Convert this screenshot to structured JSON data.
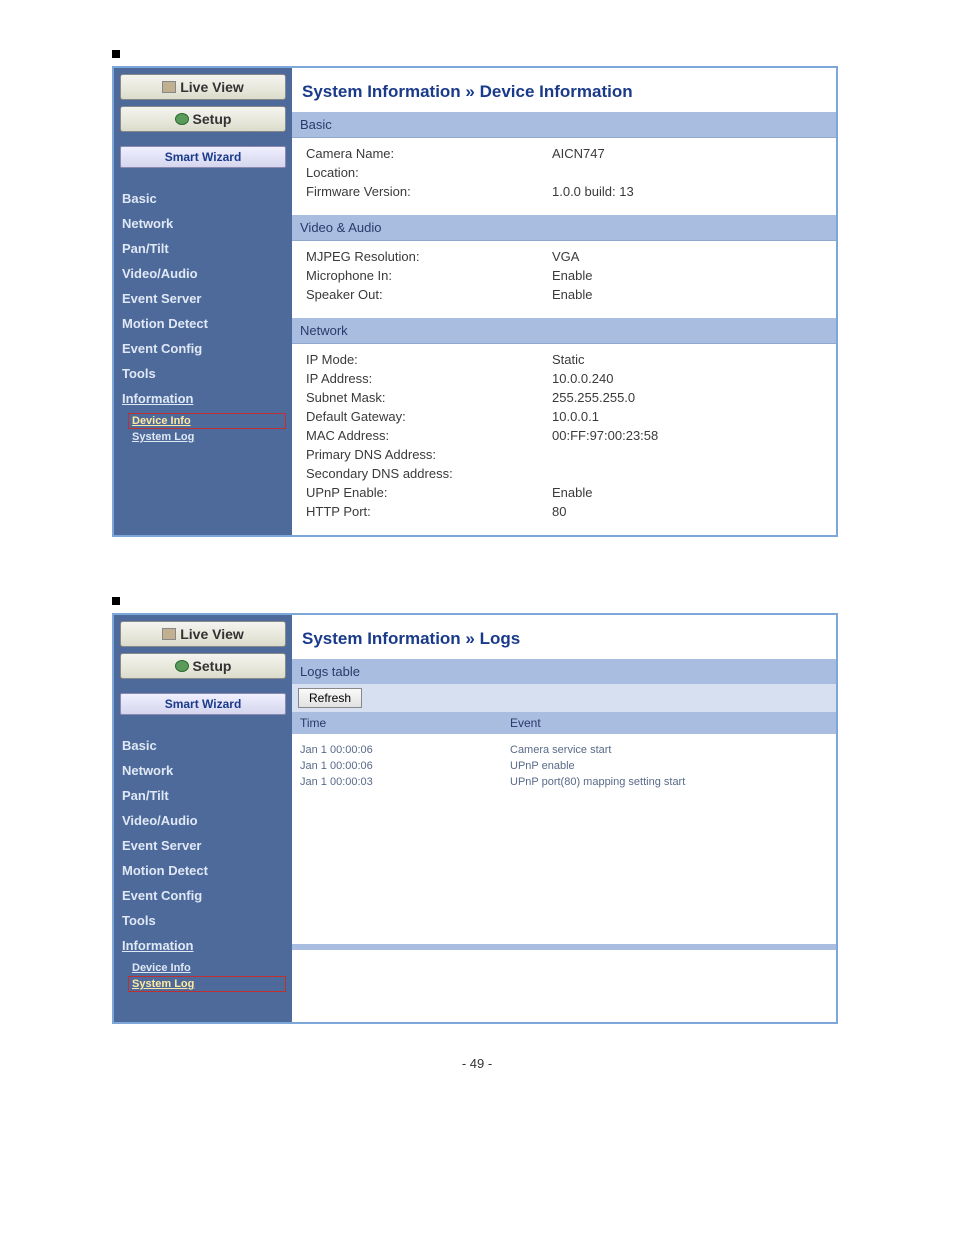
{
  "colors": {
    "panel_border": "#7da7d9",
    "sidebar_bg": "#4d6a9a",
    "section_head_bg": "#a8bde0",
    "title_color": "#1a3a8a"
  },
  "buttons": {
    "live_view": "Live View",
    "setup": "Setup",
    "smart_wizard": "Smart Wizard",
    "refresh": "Refresh"
  },
  "nav": {
    "items": [
      {
        "label": "Basic"
      },
      {
        "label": "Network"
      },
      {
        "label": "Pan/Tilt"
      },
      {
        "label": "Video/Audio"
      },
      {
        "label": "Event Server"
      },
      {
        "label": "Motion Detect"
      },
      {
        "label": "Event Config"
      },
      {
        "label": "Tools"
      },
      {
        "label": "Information"
      }
    ],
    "sub": {
      "device_info": "Device Info",
      "system_log": "System Log"
    }
  },
  "screen1": {
    "title": "System Information » Device Information",
    "sections": [
      {
        "title": "Basic",
        "rows": [
          {
            "label": "Camera Name:",
            "value": "AICN747"
          },
          {
            "label": "Location:",
            "value": ""
          },
          {
            "label": "Firmware Version:",
            "value": "1.0.0 build: 13"
          }
        ]
      },
      {
        "title": "Video & Audio",
        "rows": [
          {
            "label": "MJPEG Resolution:",
            "value": "VGA"
          },
          {
            "label": "Microphone In:",
            "value": "Enable"
          },
          {
            "label": "Speaker Out:",
            "value": "Enable"
          }
        ]
      },
      {
        "title": "Network",
        "rows": [
          {
            "label": "IP Mode:",
            "value": "Static"
          },
          {
            "label": "IP Address:",
            "value": "10.0.0.240"
          },
          {
            "label": "Subnet Mask:",
            "value": "255.255.255.0"
          },
          {
            "label": "Default Gateway:",
            "value": "10.0.0.1"
          },
          {
            "label": "MAC Address:",
            "value": "00:FF:97:00:23:58"
          },
          {
            "label": "Primary DNS Address:",
            "value": ""
          },
          {
            "label": "Secondary DNS address:",
            "value": ""
          },
          {
            "label": "UPnP Enable:",
            "value": "Enable"
          },
          {
            "label": "HTTP Port:",
            "value": "80"
          }
        ]
      }
    ]
  },
  "screen2": {
    "title": "System Information » Logs",
    "table_title": "Logs table",
    "headers": {
      "time": "Time",
      "event": "Event"
    },
    "rows": [
      {
        "time": "Jan  1 00:00:06",
        "event": "Camera service start"
      },
      {
        "time": "Jan  1 00:00:06",
        "event": "UPnP enable"
      },
      {
        "time": "Jan  1 00:00:03",
        "event": "UPnP port(80) mapping setting start"
      }
    ]
  },
  "page_number": "- 49 -"
}
